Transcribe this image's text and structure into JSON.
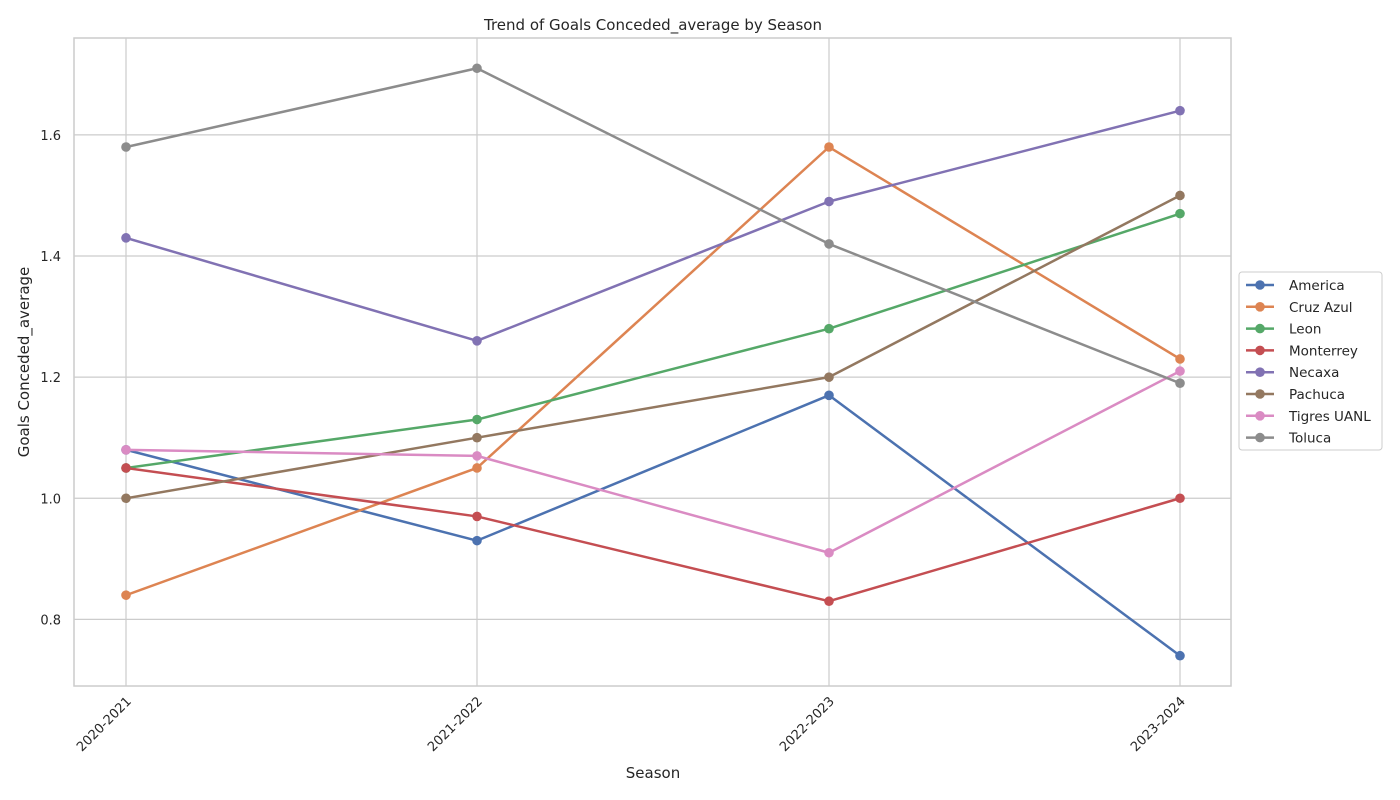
{
  "chart_data": {
    "type": "line",
    "title": "Trend of Goals Conceded_average by Season",
    "xlabel": "Season",
    "ylabel": "Goals Conceded_average",
    "categories": [
      "2020-2021",
      "2021-2022",
      "2022-2023",
      "2023-2024"
    ],
    "ylim": [
      0.69,
      1.76
    ],
    "yticks": [
      0.8,
      1.0,
      1.2,
      1.4,
      1.6
    ],
    "ytick_labels": [
      "0.8",
      "1.0",
      "1.2",
      "1.4",
      "1.6"
    ],
    "grid": true,
    "legend_position": "center-right",
    "series": [
      {
        "name": "America",
        "color": "#4c72b0",
        "values": [
          1.08,
          0.93,
          1.17,
          0.74
        ]
      },
      {
        "name": "Cruz Azul",
        "color": "#dd8452",
        "values": [
          0.84,
          1.05,
          1.58,
          1.23
        ]
      },
      {
        "name": "Leon",
        "color": "#55a868",
        "values": [
          1.05,
          1.13,
          1.28,
          1.47
        ]
      },
      {
        "name": "Monterrey",
        "color": "#c44e52",
        "values": [
          1.05,
          0.97,
          0.83,
          1.0
        ]
      },
      {
        "name": "Necaxa",
        "color": "#8172b3",
        "values": [
          1.43,
          1.26,
          1.49,
          1.64
        ]
      },
      {
        "name": "Pachuca",
        "color": "#937860",
        "values": [
          1.0,
          1.1,
          1.2,
          1.5
        ]
      },
      {
        "name": "Tigres UANL",
        "color": "#da8bc3",
        "values": [
          1.08,
          1.07,
          0.91,
          1.21
        ]
      },
      {
        "name": "Toluca",
        "color": "#8c8c8c",
        "values": [
          1.58,
          1.71,
          1.42,
          1.19
        ]
      }
    ]
  }
}
